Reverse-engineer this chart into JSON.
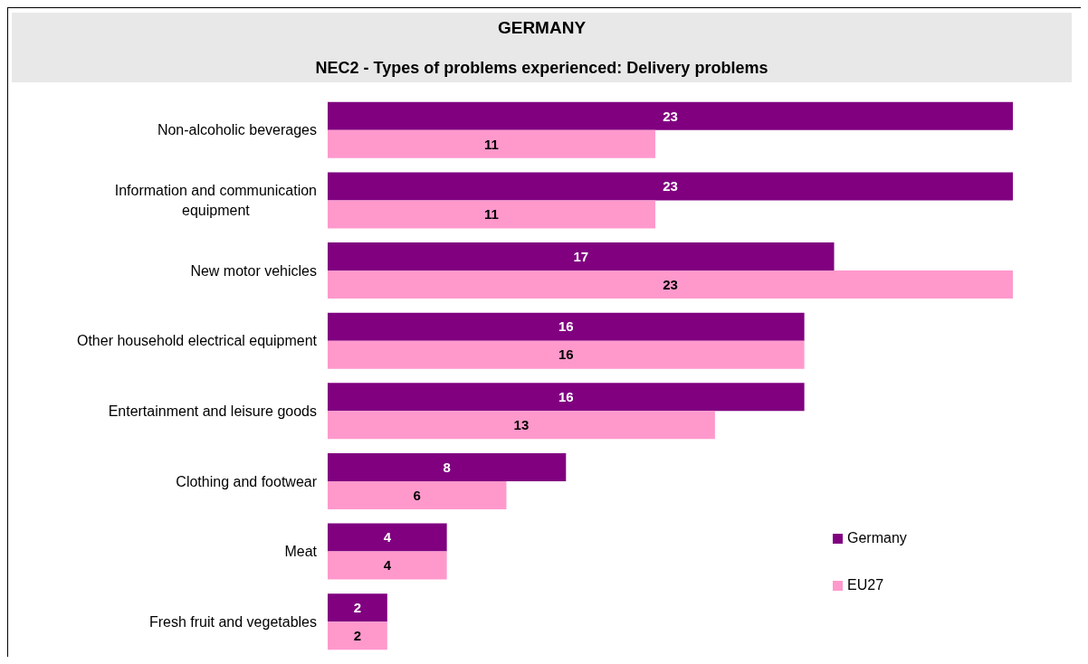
{
  "chart_data": {
    "type": "bar",
    "orientation": "horizontal",
    "title": "GERMANY",
    "subtitle": "NEC2 - Types of problems experienced: Delivery problems",
    "categories": [
      "Non-alcoholic beverages",
      "Information and communication equipment",
      "New motor vehicles",
      "Other household electrical equipment",
      "Entertainment and leisure goods",
      "Clothing and footwear",
      "Meat",
      "Fresh fruit and vegetables"
    ],
    "series": [
      {
        "name": "Germany",
        "color": "#800080",
        "values": [
          23,
          23,
          17,
          16,
          16,
          8,
          4,
          2
        ]
      },
      {
        "name": "EU27",
        "color": "#ff99cc",
        "values": [
          11,
          11,
          23,
          16,
          13,
          6,
          4,
          2
        ]
      }
    ],
    "data_labels": true,
    "legend": "bottom right"
  }
}
